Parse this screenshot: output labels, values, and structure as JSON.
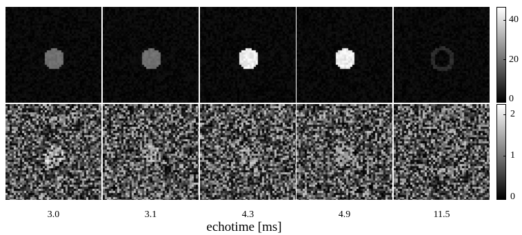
{
  "figure": {
    "x_label": "echotime [ms]",
    "columns": [
      "3.0",
      "3.1",
      "4.3",
      "4.9",
      "11.5"
    ],
    "rows": [
      {
        "row": "top",
        "colorbar_ticks": [
          "40",
          "20",
          "0"
        ],
        "phantom_brightness": [
          0.45,
          0.45,
          0.95,
          0.95,
          0.12
        ]
      },
      {
        "row": "bottom",
        "colorbar_ticks": [
          "2",
          "1",
          "0"
        ],
        "phantom_brightness": [
          0.85,
          0.75,
          0.6,
          0.55,
          0.0
        ]
      }
    ]
  }
}
